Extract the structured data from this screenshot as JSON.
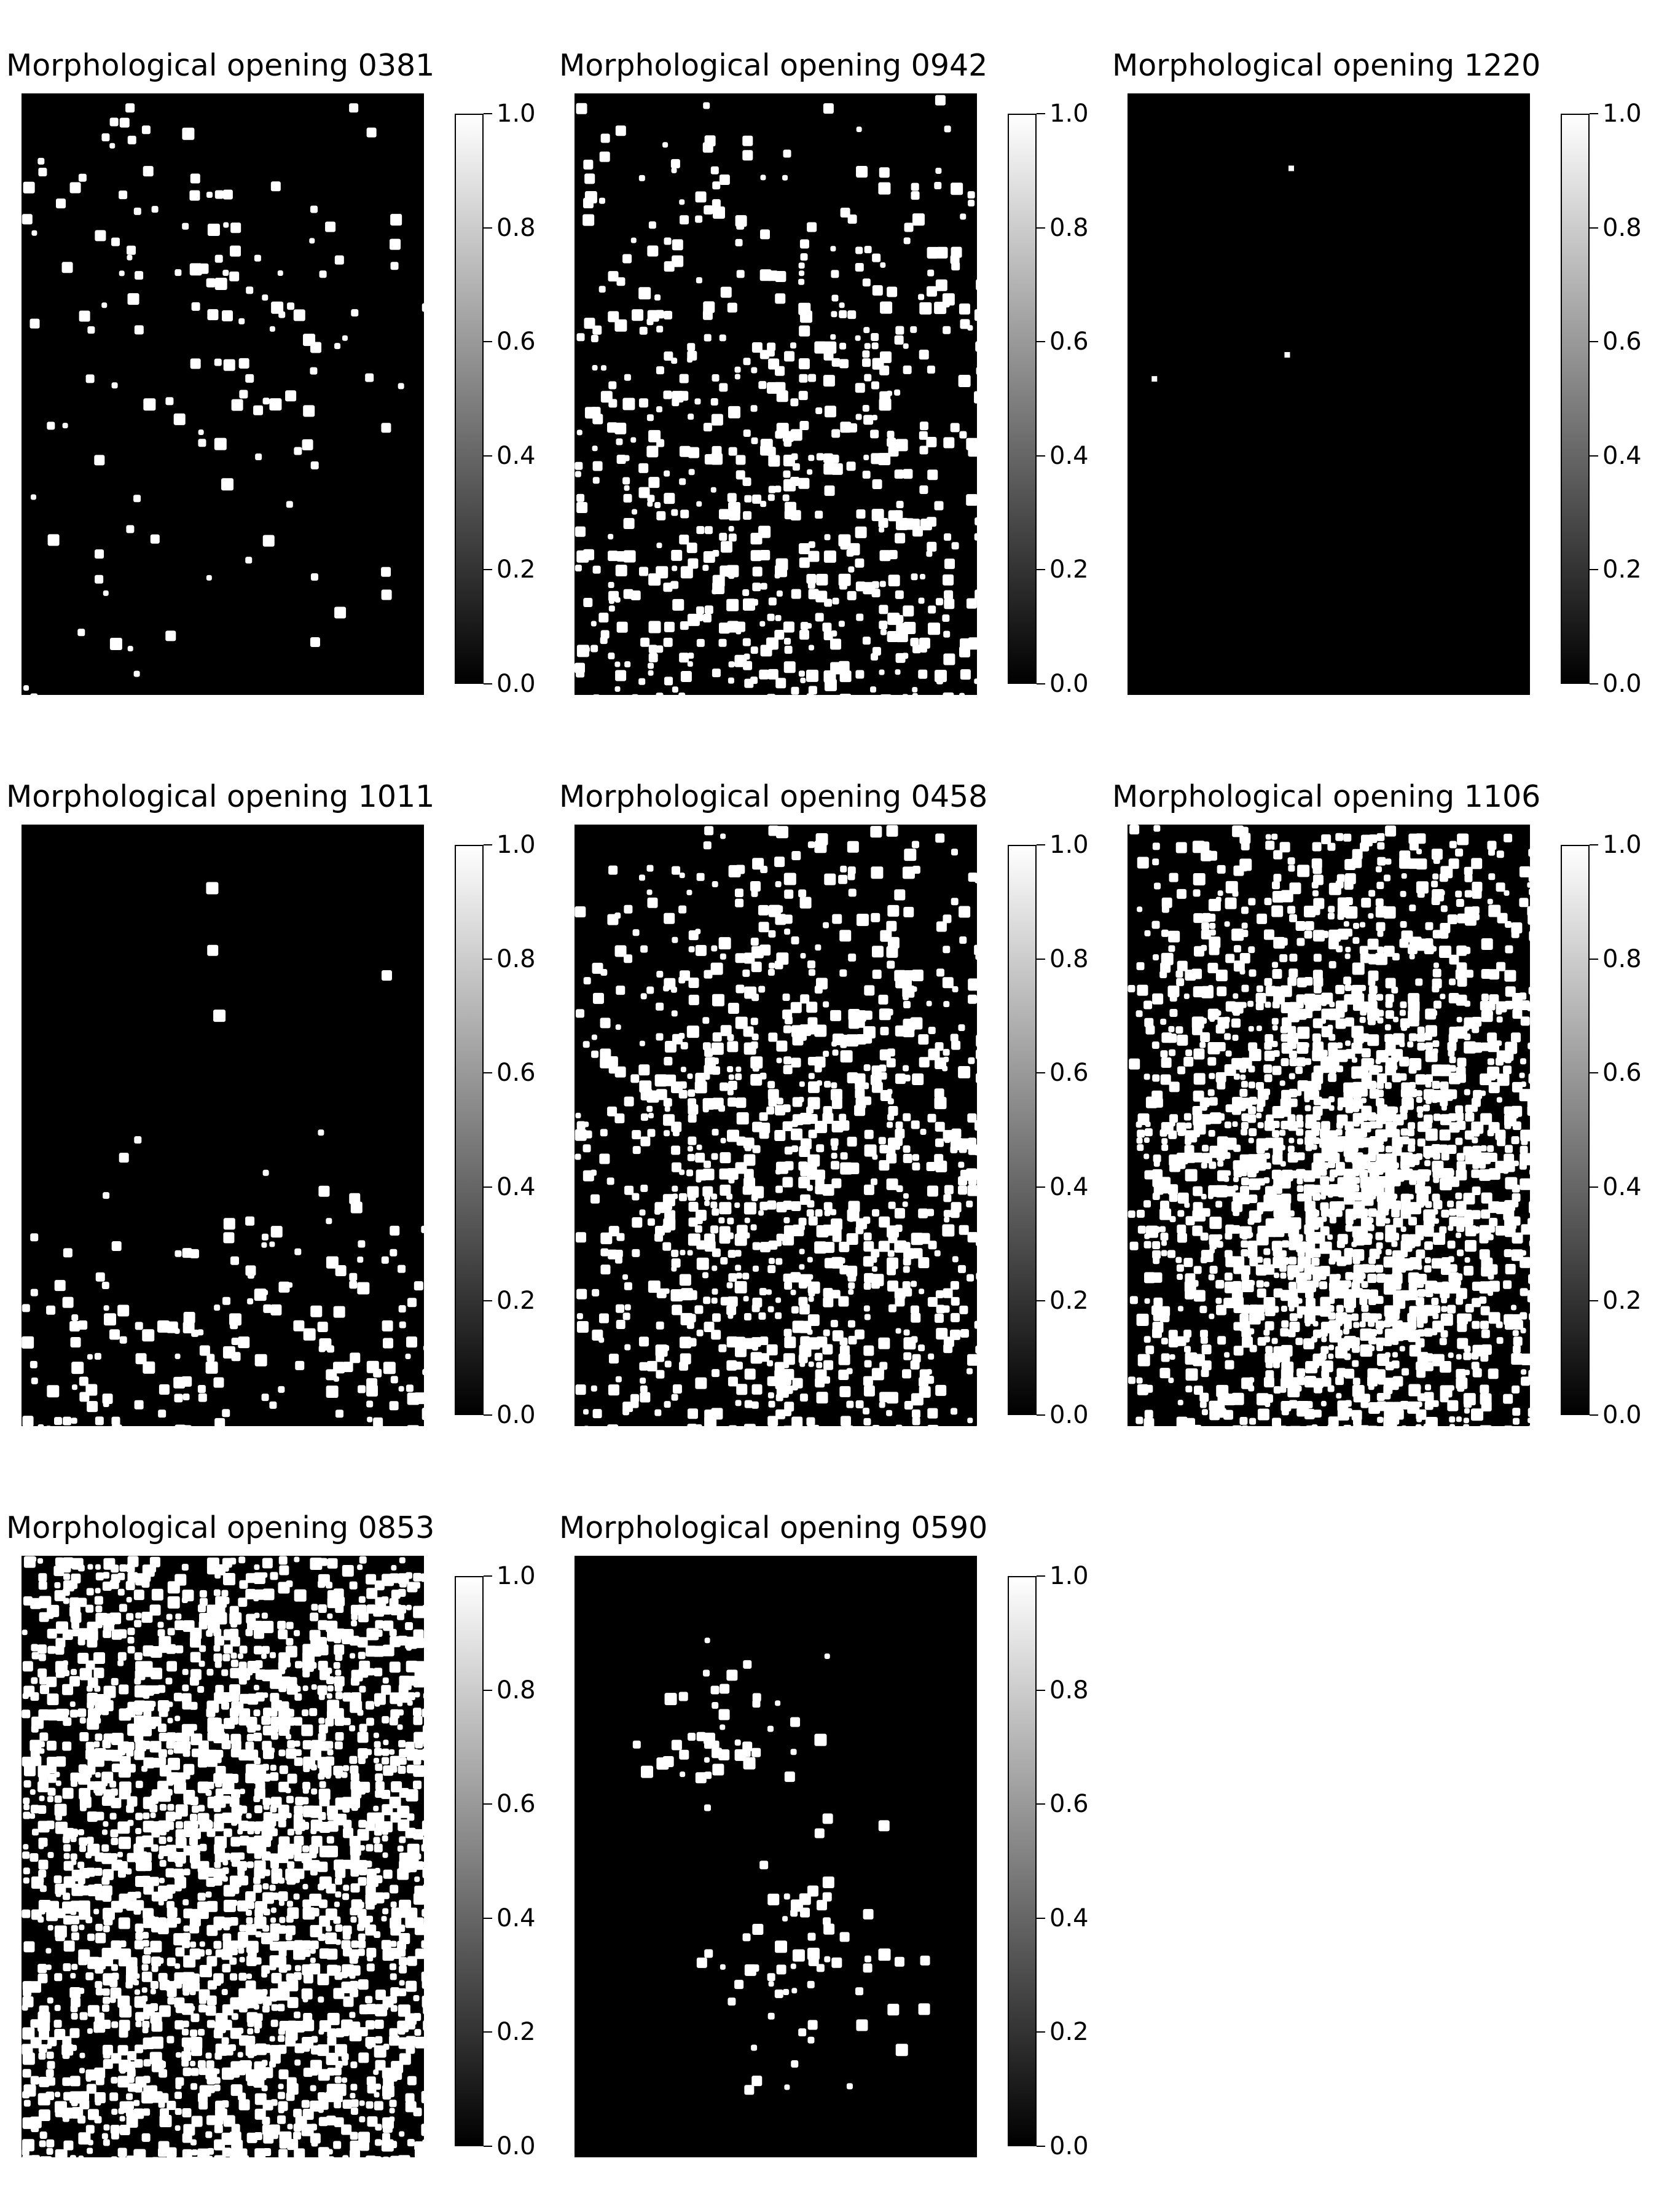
{
  "figure": {
    "panels": [
      {
        "title": "Morphological opening 0381",
        "density": 0.035,
        "cluster": "upper",
        "colorbar_ticks": [
          "0.0",
          "0.2",
          "0.4",
          "0.6",
          "0.8",
          "1.0"
        ]
      },
      {
        "title": "Morphological opening 0942",
        "density": 0.12,
        "cluster": "lower",
        "colorbar_ticks": [
          "0.0",
          "0.2",
          "0.4",
          "0.6",
          "0.8",
          "1.0"
        ]
      },
      {
        "title": "Morphological opening 1220",
        "density": 0.0004,
        "cluster": "sparse",
        "colorbar_ticks": [
          "0.0",
          "0.2",
          "0.4",
          "0.6",
          "0.8",
          "1.0"
        ]
      },
      {
        "title": "Morphological opening 1011",
        "density": 0.07,
        "cluster": "bottom",
        "colorbar_ticks": [
          "0.0",
          "0.2",
          "0.4",
          "0.6",
          "0.8",
          "1.0"
        ]
      },
      {
        "title": "Morphological opening 0458",
        "density": 0.17,
        "cluster": "center",
        "colorbar_ticks": [
          "0.0",
          "0.2",
          "0.4",
          "0.6",
          "0.8",
          "1.0"
        ]
      },
      {
        "title": "Morphological opening 1106",
        "density": 0.32,
        "cluster": "center",
        "colorbar_ticks": [
          "0.0",
          "0.2",
          "0.4",
          "0.6",
          "0.8",
          "1.0"
        ]
      },
      {
        "title": "Morphological opening 0853",
        "density": 0.3,
        "cluster": "uniform",
        "colorbar_ticks": [
          "0.0",
          "0.2",
          "0.4",
          "0.6",
          "0.8",
          "1.0"
        ]
      },
      {
        "title": "Morphological opening 0590",
        "density": 0.1,
        "cluster": "two-lobes",
        "colorbar_ticks": [
          "0.0",
          "0.2",
          "0.4",
          "0.6",
          "0.8",
          "1.0"
        ]
      }
    ]
  },
  "chart_data": [
    {
      "type": "heatmap",
      "title": "Morphological opening 0381",
      "colormap": "gray",
      "clim": [
        0.0,
        1.0
      ],
      "colorbar_ticks": [
        0.0,
        0.2,
        0.4,
        0.6,
        0.8,
        1.0
      ],
      "foreground_fraction": 0.035
    },
    {
      "type": "heatmap",
      "title": "Morphological opening 0942",
      "colormap": "gray",
      "clim": [
        0.0,
        1.0
      ],
      "colorbar_ticks": [
        0.0,
        0.2,
        0.4,
        0.6,
        0.8,
        1.0
      ],
      "foreground_fraction": 0.12
    },
    {
      "type": "heatmap",
      "title": "Morphological opening 1220",
      "colormap": "gray",
      "clim": [
        0.0,
        1.0
      ],
      "colorbar_ticks": [
        0.0,
        0.2,
        0.4,
        0.6,
        0.8,
        1.0
      ],
      "foreground_fraction": 0.0004
    },
    {
      "type": "heatmap",
      "title": "Morphological opening 1011",
      "colormap": "gray",
      "clim": [
        0.0,
        1.0
      ],
      "colorbar_ticks": [
        0.0,
        0.2,
        0.4,
        0.6,
        0.8,
        1.0
      ],
      "foreground_fraction": 0.07
    },
    {
      "type": "heatmap",
      "title": "Morphological opening 0458",
      "colormap": "gray",
      "clim": [
        0.0,
        1.0
      ],
      "colorbar_ticks": [
        0.0,
        0.2,
        0.4,
        0.6,
        0.8,
        1.0
      ],
      "foreground_fraction": 0.17
    },
    {
      "type": "heatmap",
      "title": "Morphological opening 1106",
      "colormap": "gray",
      "clim": [
        0.0,
        1.0
      ],
      "colorbar_ticks": [
        0.0,
        0.2,
        0.4,
        0.6,
        0.8,
        1.0
      ],
      "foreground_fraction": 0.32
    },
    {
      "type": "heatmap",
      "title": "Morphological opening 0853",
      "colormap": "gray",
      "clim": [
        0.0,
        1.0
      ],
      "colorbar_ticks": [
        0.0,
        0.2,
        0.4,
        0.6,
        0.8,
        1.0
      ],
      "foreground_fraction": 0.3
    },
    {
      "type": "heatmap",
      "title": "Morphological opening 0590",
      "colormap": "gray",
      "clim": [
        0.0,
        1.0
      ],
      "colorbar_ticks": [
        0.0,
        0.2,
        0.4,
        0.6,
        0.8,
        1.0
      ],
      "foreground_fraction": 0.1
    }
  ]
}
